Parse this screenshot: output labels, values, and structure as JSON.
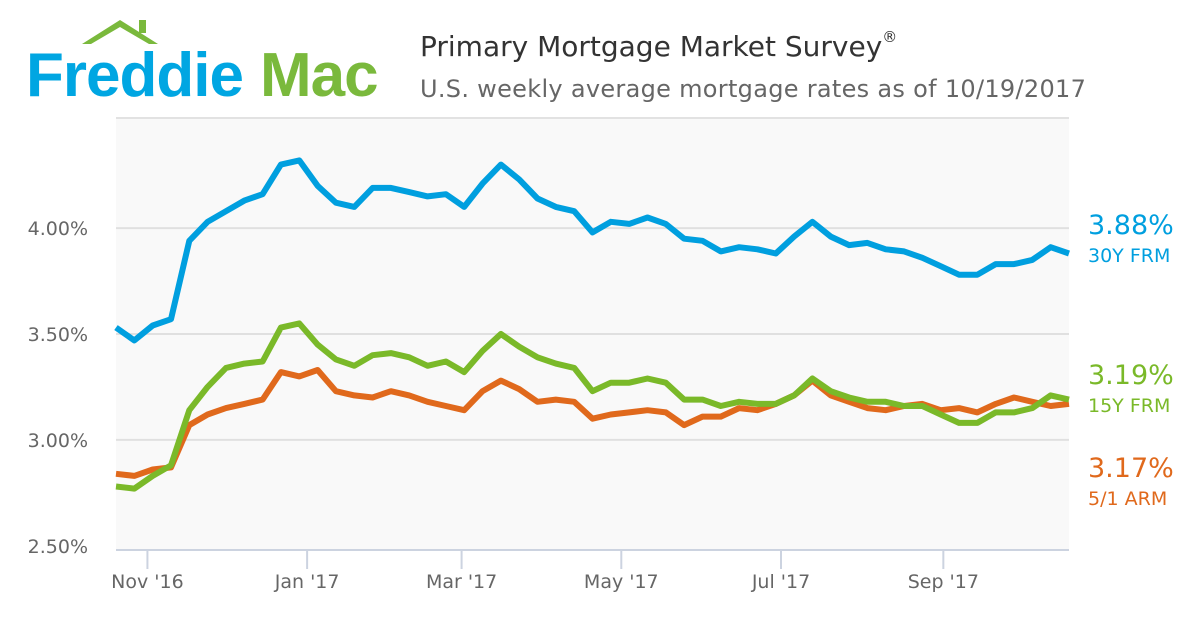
{
  "logo": {
    "text_left": "Freddie",
    "text_right": "Mac",
    "colors": {
      "blue": "#00A6E2",
      "green": "#7AB93C"
    }
  },
  "header": {
    "title": "Primary Mortgage Market Survey",
    "title_mark": "®",
    "subtitle": "U.S. weekly average mortgage rates as of 10/19/2017"
  },
  "chart_data": {
    "type": "line",
    "title": "Primary Mortgage Market Survey®",
    "subtitle": "U.S. weekly average mortgage rates as of 10/19/2017",
    "xlabel": "",
    "ylabel": "",
    "x_start": "2016-10-20",
    "x_end": "2017-10-19",
    "x_interval": "weekly",
    "ylim": [
      2.48,
      4.52
    ],
    "yticks": [
      2.5,
      3.0,
      3.5,
      4.0
    ],
    "ytick_labels": [
      "2.50%",
      "3.00%",
      "3.50%",
      "4.00%"
    ],
    "xticks": [
      {
        "date": "2016-11-01",
        "label": "Nov '16"
      },
      {
        "date": "2017-01-01",
        "label": "Jan '17"
      },
      {
        "date": "2017-03-01",
        "label": "Mar '17"
      },
      {
        "date": "2017-05-01",
        "label": "May '17"
      },
      {
        "date": "2017-07-01",
        "label": "Jul '17"
      },
      {
        "date": "2017-09-01",
        "label": "Sep '17"
      }
    ],
    "grid": true,
    "legend": "right",
    "series": [
      {
        "name": "30Y FRM",
        "last_label": "3.88%",
        "color": "#009FDF",
        "values": [
          3.53,
          3.47,
          3.54,
          3.57,
          3.94,
          4.03,
          4.08,
          4.13,
          4.16,
          4.3,
          4.32,
          4.2,
          4.12,
          4.1,
          4.19,
          4.19,
          4.17,
          4.15,
          4.16,
          4.1,
          4.21,
          4.3,
          4.23,
          4.14,
          4.1,
          4.08,
          3.98,
          4.03,
          4.02,
          4.05,
          4.02,
          3.95,
          3.94,
          3.89,
          3.91,
          3.9,
          3.88,
          3.96,
          4.03,
          3.96,
          3.92,
          3.93,
          3.9,
          3.89,
          3.86,
          3.82,
          3.78,
          3.78,
          3.83,
          3.83,
          3.85,
          3.91,
          3.88
        ]
      },
      {
        "name": "15Y FRM",
        "last_label": "3.19%",
        "color": "#7AB929",
        "values": [
          2.78,
          2.77,
          2.83,
          2.88,
          3.14,
          3.25,
          3.34,
          3.36,
          3.37,
          3.53,
          3.55,
          3.45,
          3.38,
          3.35,
          3.4,
          3.41,
          3.39,
          3.35,
          3.37,
          3.32,
          3.42,
          3.5,
          3.44,
          3.39,
          3.36,
          3.34,
          3.23,
          3.27,
          3.27,
          3.29,
          3.27,
          3.19,
          3.19,
          3.16,
          3.18,
          3.17,
          3.17,
          3.21,
          3.29,
          3.23,
          3.2,
          3.18,
          3.18,
          3.16,
          3.16,
          3.12,
          3.08,
          3.08,
          3.13,
          3.13,
          3.15,
          3.21,
          3.19
        ]
      },
      {
        "name": "5/1 ARM",
        "last_label": "3.17%",
        "color": "#E0691C",
        "values": [
          2.84,
          2.83,
          2.86,
          2.87,
          3.07,
          3.12,
          3.15,
          3.17,
          3.19,
          3.32,
          3.3,
          3.33,
          3.23,
          3.21,
          3.2,
          3.23,
          3.21,
          3.18,
          3.16,
          3.14,
          3.23,
          3.28,
          3.24,
          3.18,
          3.19,
          3.18,
          3.1,
          3.12,
          3.13,
          3.14,
          3.13,
          3.07,
          3.11,
          3.11,
          3.15,
          3.14,
          3.17,
          3.21,
          3.28,
          3.21,
          3.18,
          3.15,
          3.14,
          3.16,
          3.17,
          3.14,
          3.15,
          3.13,
          3.17,
          3.2,
          3.18,
          3.16,
          3.17
        ]
      }
    ]
  }
}
